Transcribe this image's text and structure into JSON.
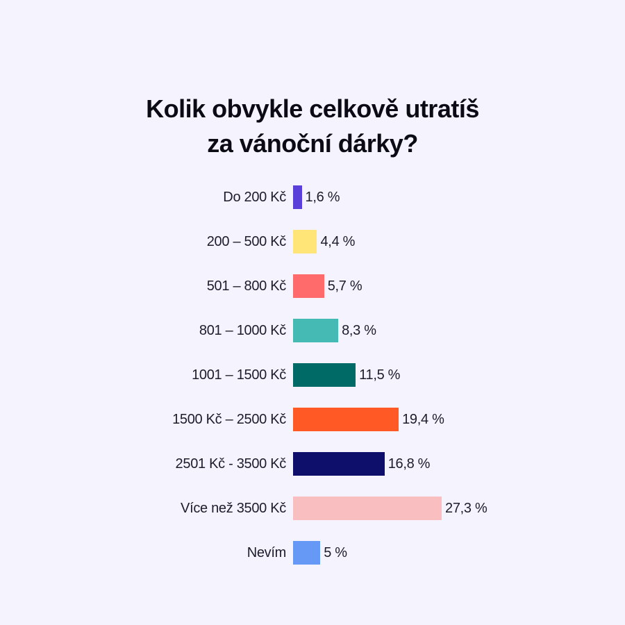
{
  "chart_data": {
    "type": "bar",
    "orientation": "horizontal",
    "title_lines": [
      "Kolik obvykle celkově utratíš",
      "za vánoční dárky?"
    ],
    "categories": [
      "Do 200 Kč",
      "200 – 500 Kč",
      "501 – 800 Kč",
      "801 – 1000 Kč",
      "1001 – 1500 Kč",
      "1500 Kč – 2500 Kč",
      "2501 Kč - 3500 Kč",
      "Více než 3500 Kč",
      "Nevím"
    ],
    "values": [
      1.6,
      4.4,
      5.7,
      8.3,
      11.5,
      19.4,
      16.8,
      27.3,
      5
    ],
    "value_labels": [
      "1,6 %",
      "4,4 %",
      "5,7 %",
      "8,3 %",
      "11,5 %",
      "19,4 %",
      "16,8 %",
      "27,3 %",
      "5 %"
    ],
    "colors": [
      "#5B3FD9",
      "#FFE477",
      "#FF6B6B",
      "#45BAB5",
      "#006B66",
      "#FF5A26",
      "#0D0F6B",
      "#F9BEC0",
      "#6699F5"
    ],
    "xlabel": "",
    "ylabel": "",
    "grid": false,
    "background": "#F4F3FE"
  }
}
